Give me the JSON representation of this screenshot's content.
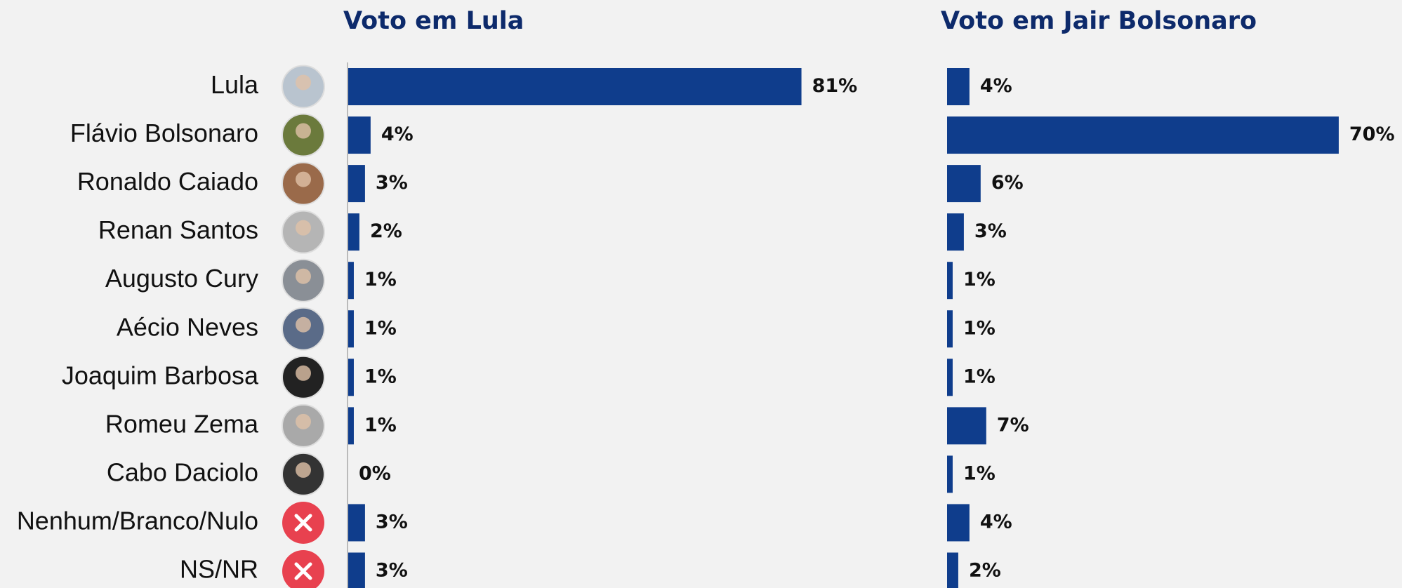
{
  "chart_data": [
    {
      "type": "hbar",
      "title": "Voto em Lula",
      "categories": [
        "Lula",
        "Flávio Bolsonaro",
        "Ronaldo Caiado",
        "Renan Santos",
        "Augusto Cury",
        "Aécio Neves",
        "Joaquim Barbosa",
        "Romeu Zema",
        "Cabo Daciolo",
        "Nenhum/Branco/Nulo",
        "NS/NR"
      ],
      "values": [
        81,
        4,
        3,
        2,
        1,
        1,
        1,
        1,
        0,
        3,
        3
      ],
      "value_labels": [
        "81%",
        "4%",
        "3%",
        "2%",
        "1%",
        "1%",
        "1%",
        "1%",
        "0%",
        "3%",
        "3%"
      ],
      "color": "#0f3d8c"
    },
    {
      "type": "hbar",
      "title": "Voto em Jair Bolsonaro",
      "values": [
        4,
        70,
        6,
        3,
        1,
        1,
        1,
        7,
        1,
        4,
        2
      ],
      "value_labels": [
        "4%",
        "70%",
        "6%",
        "3%",
        "1%",
        "1%",
        "1%",
        "7%",
        "1%",
        "4%",
        "2%"
      ],
      "color": "#0f3d8c"
    }
  ]
}
